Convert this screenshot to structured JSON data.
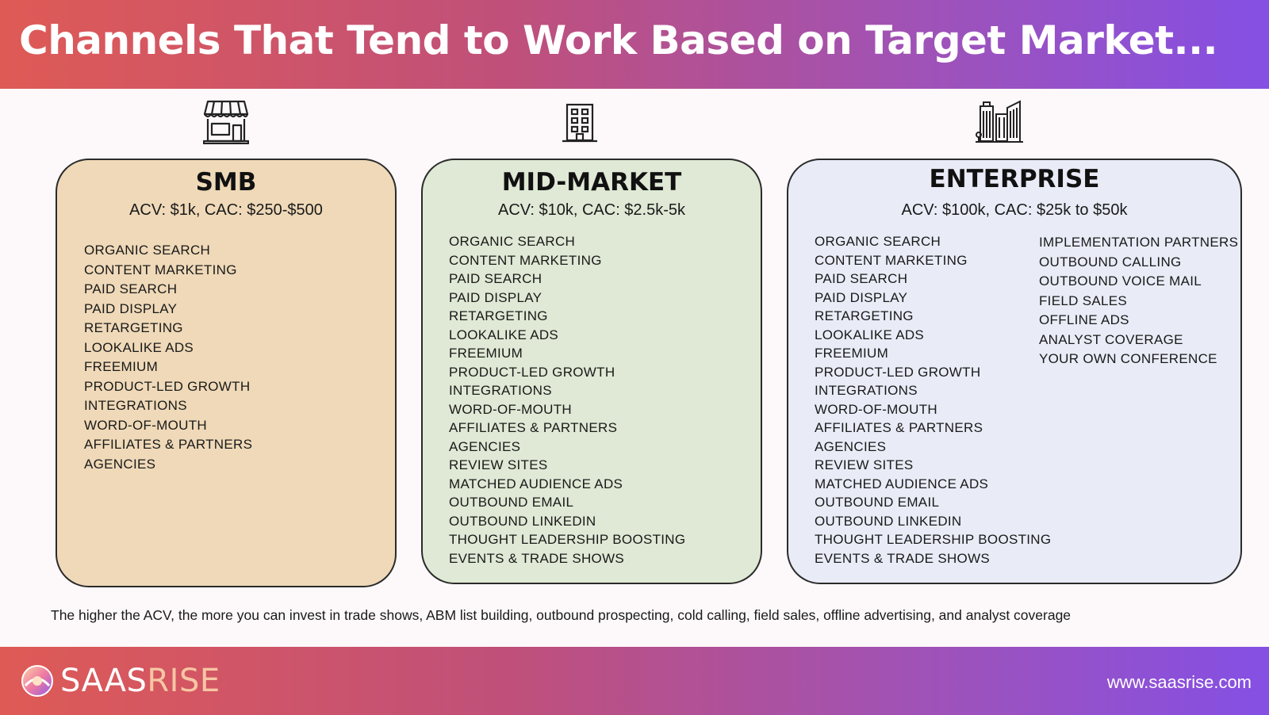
{
  "header": {
    "title": "Channels That Tend to Work Based on Target Market..."
  },
  "columns": {
    "smb": {
      "title": "SMB",
      "subtitle": "ACV: $1k, CAC: $250-$500",
      "icon": "storefront-icon",
      "channels": [
        "ORGANIC SEARCH",
        "CONTENT MARKETING",
        "PAID SEARCH",
        "PAID DISPLAY",
        "RETARGETING",
        "LOOKALIKE ADS",
        "FREEMIUM",
        "PRODUCT-LED GROWTH",
        "INTEGRATIONS",
        "WORD-OF-MOUTH",
        "AFFILIATES & PARTNERS",
        "AGENCIES"
      ]
    },
    "mid": {
      "title": "MID-MARKET",
      "subtitle": "ACV: $10k, CAC: $2.5k-5k",
      "icon": "office-building-icon",
      "channels": [
        "ORGANIC SEARCH",
        "CONTENT MARKETING",
        "PAID SEARCH",
        "PAID DISPLAY",
        "RETARGETING",
        "LOOKALIKE ADS",
        "FREEMIUM",
        "PRODUCT-LED GROWTH",
        "INTEGRATIONS",
        "WORD-OF-MOUTH",
        "AFFILIATES & PARTNERS",
        "AGENCIES",
        "REVIEW SITES",
        "MATCHED AUDIENCE ADS",
        "OUTBOUND EMAIL",
        "OUTBOUND LINKEDIN",
        "THOUGHT LEADERSHIP BOOSTING",
        "EVENTS & TRADE SHOWS"
      ]
    },
    "ent": {
      "title": "ENTERPRISE",
      "subtitle": "ACV: $100k, CAC: $25k to $50k",
      "icon": "skyscrapers-icon",
      "channels": [
        "ORGANIC SEARCH",
        "CONTENT MARKETING",
        "PAID SEARCH",
        "PAID DISPLAY",
        "RETARGETING",
        "LOOKALIKE ADS",
        "FREEMIUM",
        "PRODUCT-LED GROWTH",
        "INTEGRATIONS",
        "WORD-OF-MOUTH",
        "AFFILIATES & PARTNERS",
        "AGENCIES",
        "REVIEW SITES",
        "MATCHED AUDIENCE ADS",
        "OUTBOUND EMAIL",
        "OUTBOUND LINKEDIN",
        "THOUGHT LEADERSHIP BOOSTING",
        "EVENTS & TRADE SHOWS"
      ],
      "channels_extra": [
        "IMPLEMENTATION PARTNERS",
        "OUTBOUND CALLING",
        "OUTBOUND VOICE MAIL",
        "FIELD SALES",
        "OFFLINE ADS",
        "ANALYST COVERAGE",
        "YOUR OWN CONFERENCE"
      ]
    }
  },
  "footnote": "The higher the ACV, the more you can invest in trade shows, ABM list building, outbound prospecting, cold calling, field sales, offline advertising, and analyst coverage",
  "footer": {
    "logo_part1": "SAAS",
    "logo_part2": "RISE",
    "website": "www.saasrise.com"
  },
  "colors": {
    "smb_card": "#efd9b8",
    "mid_card": "#dfe9d5",
    "ent_card": "#e9ecf7",
    "gradient_start": "#de5a55",
    "gradient_end": "#8550e4"
  }
}
